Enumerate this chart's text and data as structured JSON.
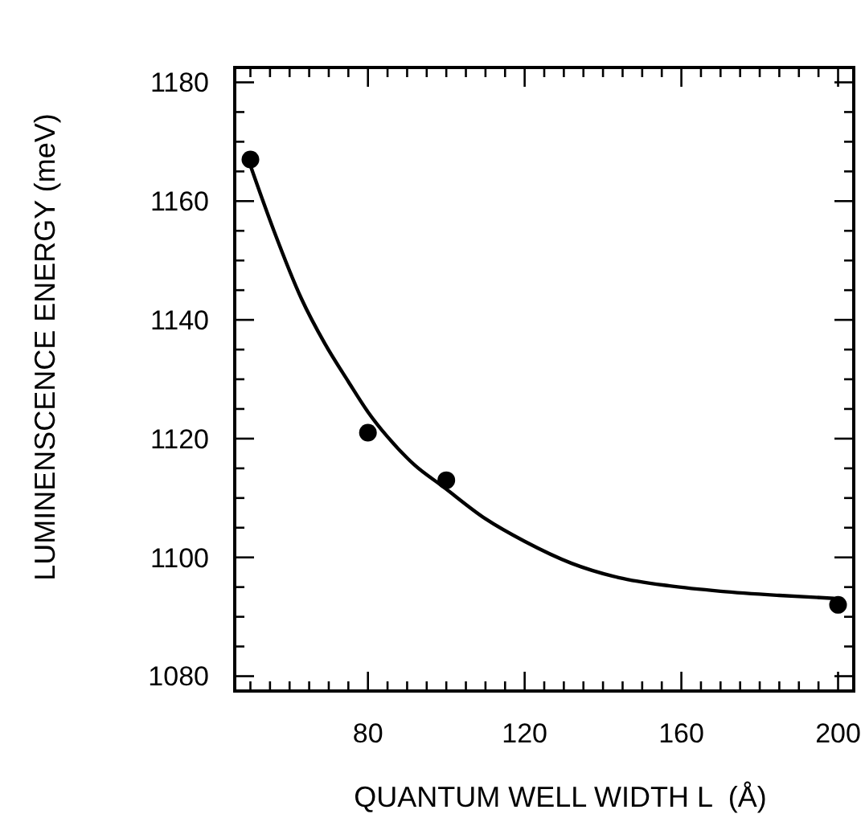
{
  "chart_data": {
    "type": "scatter",
    "xlabel": "QUANTUM WELL WIDTH L  (Å)",
    "ylabel": "LUMINENSCENCE ENERGY (meV)",
    "xlim": [
      46,
      204
    ],
    "ylim": [
      1077.5,
      1182.5
    ],
    "xticks": [
      {
        "value": 50,
        "label": null
      },
      {
        "value": 55,
        "label": null
      },
      {
        "value": 60,
        "label": null
      },
      {
        "value": 65,
        "label": null
      },
      {
        "value": 70,
        "label": null
      },
      {
        "value": 75,
        "label": null
      },
      80,
      {
        "value": 85,
        "label": null
      },
      {
        "value": 90,
        "label": null
      },
      {
        "value": 95,
        "label": null
      },
      {
        "value": 100,
        "label": null
      },
      {
        "value": 105,
        "label": null
      },
      {
        "value": 110,
        "label": null
      },
      {
        "value": 115,
        "label": null
      },
      120,
      {
        "value": 125,
        "label": null
      },
      {
        "value": 130,
        "label": null
      },
      {
        "value": 135,
        "label": null
      },
      {
        "value": 140,
        "label": null
      },
      {
        "value": 145,
        "label": null
      },
      {
        "value": 150,
        "label": null
      },
      {
        "value": 155,
        "label": null
      },
      160,
      {
        "value": 165,
        "label": null
      },
      {
        "value": 170,
        "label": null
      },
      {
        "value": 175,
        "label": null
      },
      {
        "value": 180,
        "label": null
      },
      {
        "value": 185,
        "label": null
      },
      {
        "value": 190,
        "label": null
      },
      {
        "value": 195,
        "label": null
      },
      200
    ],
    "yticks": [
      1080,
      {
        "value": 1085,
        "label": null
      },
      {
        "value": 1090,
        "label": null
      },
      {
        "value": 1095,
        "label": null
      },
      1100,
      {
        "value": 1105,
        "label": null
      },
      {
        "value": 1110,
        "label": null
      },
      {
        "value": 1115,
        "label": null
      },
      1120,
      {
        "value": 1125,
        "label": null
      },
      {
        "value": 1130,
        "label": null
      },
      {
        "value": 1135,
        "label": null
      },
      1140,
      {
        "value": 1145,
        "label": null
      },
      {
        "value": 1150,
        "label": null
      },
      {
        "value": 1155,
        "label": null
      },
      1160,
      {
        "value": 1165,
        "label": null
      },
      {
        "value": 1170,
        "label": null
      },
      {
        "value": 1175,
        "label": null
      },
      1180
    ],
    "grid": false,
    "marker": "circle",
    "series": [
      {
        "color": "#000000",
        "x": [
          50,
          80,
          100,
          200
        ],
        "values": [
          1167,
          1121,
          1113,
          1092
        ]
      },
      {
        "type": "line",
        "color": "#000000",
        "marker": "none",
        "line_style": "solid",
        "x": [
          50,
          56,
          63,
          69,
          75,
          80,
          85,
          92,
          99,
          110,
          120,
          132,
          144,
          157,
          170,
          185,
          199
        ],
        "values": [
          1166,
          1155,
          1143.6,
          1136,
          1129.6,
          1124.5,
          1120.3,
          1115.5,
          1112,
          1106.5,
          1102.7,
          1099,
          1096.6,
          1095.2,
          1094.3,
          1093.6,
          1093.1
        ]
      }
    ]
  }
}
